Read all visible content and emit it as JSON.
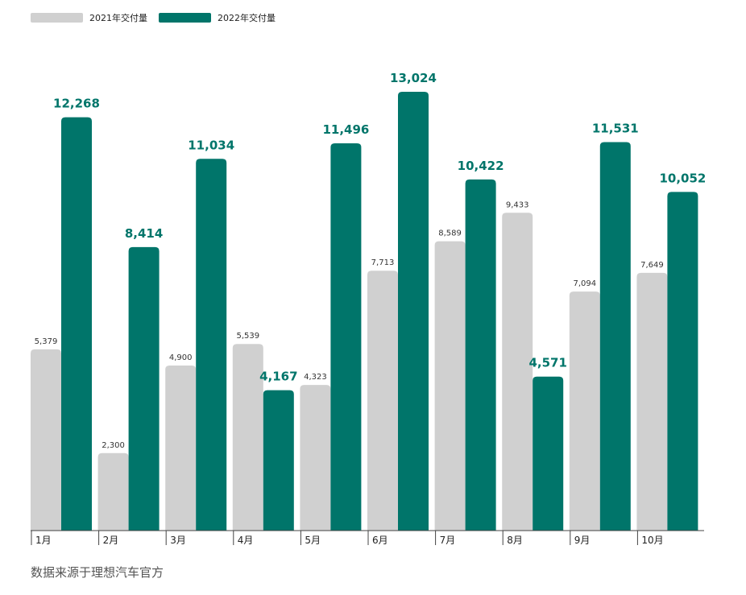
{
  "source_note": "数据来源于理想汽车官方",
  "colors": {
    "series_2021": "#d0d0d0",
    "series_2022": "#00756a",
    "label_2022": "#00756a",
    "label_2021": "#333333",
    "axis": "#444444"
  },
  "chart_data": {
    "type": "bar",
    "categories": [
      "1月",
      "2月",
      "3月",
      "4月",
      "5月",
      "6月",
      "7月",
      "8月",
      "9月",
      "10月"
    ],
    "series": [
      {
        "name": "2021年交付量",
        "values": [
          5379,
          2300,
          4900,
          5539,
          4323,
          7713,
          8589,
          9433,
          7094,
          7649
        ],
        "labels": [
          "5,379",
          "2,300",
          "4,900",
          "5,539",
          "4,323",
          "7,713",
          "8,589",
          "9,433",
          "7,094",
          "7,649"
        ]
      },
      {
        "name": "2022年交付量",
        "values": [
          12268,
          8414,
          11034,
          4167,
          11496,
          13024,
          10422,
          4571,
          11531,
          10052
        ],
        "labels": [
          "12,268",
          "8,414",
          "11,034",
          "4,167",
          "11,496",
          "13,024",
          "10,422",
          "4,571",
          "11,531",
          "10,052"
        ]
      }
    ],
    "ylim": [
      0,
      13024
    ],
    "grid": false,
    "legend_position": "top-left"
  }
}
